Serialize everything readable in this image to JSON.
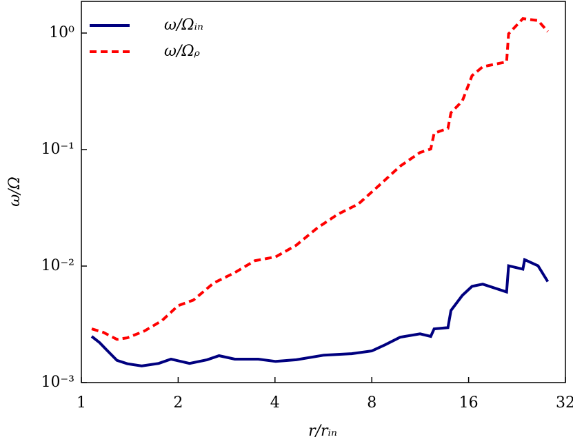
{
  "chart_data": {
    "type": "line",
    "xlabel": "r/rᵢₙ",
    "ylabel": "ω/Ω",
    "xscale": "log",
    "yscale": "log",
    "xlim": [
      1,
      32
    ],
    "xticks": [
      1,
      2,
      4,
      8,
      16,
      32
    ],
    "ylim": [
      0.001,
      1.87
    ],
    "yticks": [
      {
        "value": 0.001,
        "label": "10⁻³"
      },
      {
        "value": 0.01,
        "label": "10⁻²"
      },
      {
        "value": 0.1,
        "label": "10⁻¹"
      },
      {
        "value": 1,
        "label": "10⁰"
      }
    ],
    "legend": "upper left",
    "series": [
      {
        "name": "ω/Ωᵢₙ",
        "color": "#00007f",
        "dash": "solid",
        "x": [
          1.077,
          1.14,
          1.2,
          1.29,
          1.39,
          1.54,
          1.74,
          1.9,
          2.17,
          2.46,
          2.68,
          3.0,
          3.55,
          4.02,
          4.66,
          5.68,
          6.92,
          8.0,
          8.8,
          9.8,
          11.3,
          12.2,
          12.5,
          13.8,
          14.1,
          15.3,
          16.4,
          17.7,
          21.0,
          21.3,
          23.6,
          23.9,
          26.3,
          28.2
        ],
        "values": [
          0.00249,
          0.0022,
          0.0019,
          0.00155,
          0.00145,
          0.00139,
          0.00146,
          0.00159,
          0.00146,
          0.00157,
          0.0017,
          0.00159,
          0.00159,
          0.00152,
          0.00157,
          0.00172,
          0.00177,
          0.00187,
          0.00211,
          0.00245,
          0.00262,
          0.00249,
          0.00289,
          0.00296,
          0.00416,
          0.0056,
          0.0067,
          0.007,
          0.006,
          0.01005,
          0.0094,
          0.01135,
          0.01005,
          0.00736
        ]
      },
      {
        "name": "ω/Ωᵨ",
        "color": "#ff0000",
        "dash": "dashed",
        "x": [
          1.077,
          1.17,
          1.29,
          1.39,
          1.57,
          1.78,
          2.0,
          2.23,
          2.58,
          3.0,
          3.46,
          4.02,
          4.66,
          5.41,
          6.27,
          7.27,
          8.43,
          9.8,
          11.3,
          12.2,
          12.5,
          13.8,
          14.1,
          15.3,
          16.4,
          17.7,
          21.0,
          21.3,
          23.6,
          26.3,
          28.2
        ],
        "values": [
          0.00289,
          0.0027,
          0.00235,
          0.00242,
          0.00277,
          0.0034,
          0.00458,
          0.0051,
          0.00716,
          0.00878,
          0.0111,
          0.012,
          0.0151,
          0.0212,
          0.0278,
          0.0341,
          0.0492,
          0.072,
          0.0944,
          0.101,
          0.138,
          0.152,
          0.207,
          0.261,
          0.431,
          0.514,
          0.566,
          0.986,
          1.33,
          1.28,
          1.03
        ]
      }
    ]
  }
}
